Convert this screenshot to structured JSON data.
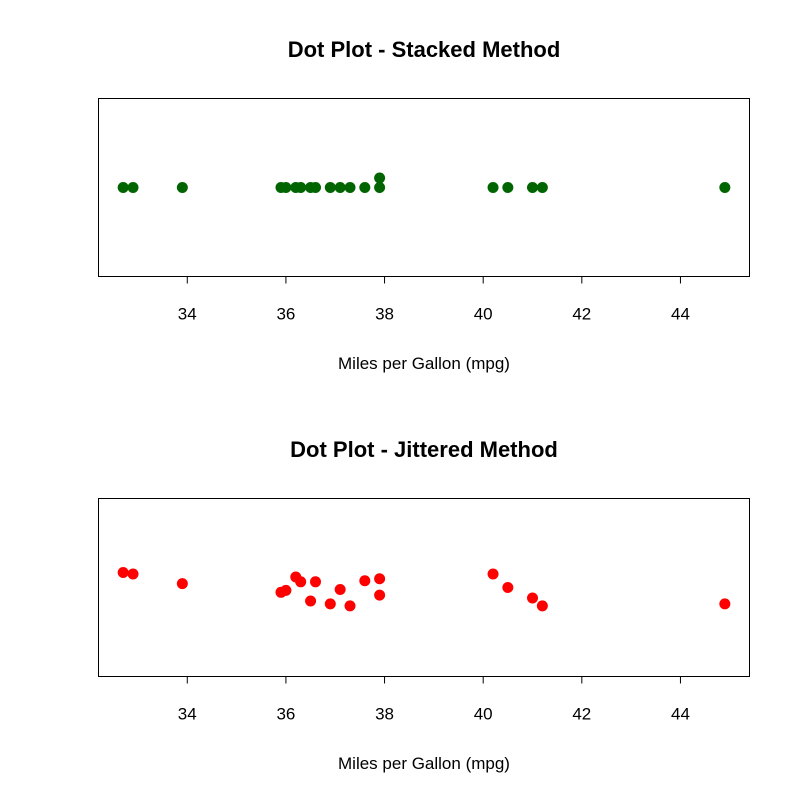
{
  "chart_data": [
    {
      "type": "scatter",
      "method": "stacked",
      "title": "Dot Plot - Stacked Method",
      "xlabel": "Miles per Gallon (mpg)",
      "ylabel": "",
      "xlim": [
        32.2,
        45.4
      ],
      "xticks": [
        34,
        36,
        38,
        40,
        42,
        44
      ],
      "xtick_labels": [
        "34",
        "36",
        "38",
        "40",
        "42",
        "44"
      ],
      "point_color": "#006400",
      "grid": false,
      "legend": "none",
      "points": [
        {
          "x": 32.7,
          "level": 0
        },
        {
          "x": 32.9,
          "level": 0
        },
        {
          "x": 33.9,
          "level": 0
        },
        {
          "x": 35.9,
          "level": 0
        },
        {
          "x": 36.0,
          "level": 0
        },
        {
          "x": 36.2,
          "level": 0
        },
        {
          "x": 36.3,
          "level": 0
        },
        {
          "x": 36.5,
          "level": 0
        },
        {
          "x": 36.6,
          "level": 0
        },
        {
          "x": 36.9,
          "level": 0
        },
        {
          "x": 37.1,
          "level": 0
        },
        {
          "x": 37.3,
          "level": 0
        },
        {
          "x": 37.6,
          "level": 0
        },
        {
          "x": 37.9,
          "level": 0
        },
        {
          "x": 37.9,
          "level": 1
        },
        {
          "x": 40.2,
          "level": 0
        },
        {
          "x": 40.5,
          "level": 0
        },
        {
          "x": 41.0,
          "level": 0
        },
        {
          "x": 41.2,
          "level": 0
        },
        {
          "x": 44.9,
          "level": 0
        }
      ]
    },
    {
      "type": "scatter",
      "method": "jitter",
      "title": "Dot Plot - Jittered Method",
      "xlabel": "Miles per Gallon (mpg)",
      "ylabel": "",
      "xlim": [
        32.2,
        45.4
      ],
      "ylim": [
        0.5,
        1.5
      ],
      "xticks": [
        34,
        36,
        38,
        40,
        42,
        44
      ],
      "xtick_labels": [
        "34",
        "36",
        "38",
        "40",
        "42",
        "44"
      ],
      "point_color": "#ff0000",
      "grid": false,
      "legend": "none",
      "points": [
        {
          "x": 32.7,
          "y": 1.084
        },
        {
          "x": 32.9,
          "y": 1.076
        },
        {
          "x": 33.9,
          "y": 1.022
        },
        {
          "x": 35.9,
          "y": 0.973
        },
        {
          "x": 36.0,
          "y": 0.984
        },
        {
          "x": 36.2,
          "y": 1.059
        },
        {
          "x": 36.3,
          "y": 1.032
        },
        {
          "x": 36.5,
          "y": 0.924
        },
        {
          "x": 36.6,
          "y": 1.032
        },
        {
          "x": 36.9,
          "y": 0.908
        },
        {
          "x": 37.1,
          "y": 0.989
        },
        {
          "x": 37.3,
          "y": 0.897
        },
        {
          "x": 37.6,
          "y": 1.038
        },
        {
          "x": 37.9,
          "y": 1.049
        },
        {
          "x": 37.9,
          "y": 0.957
        },
        {
          "x": 40.2,
          "y": 1.076
        },
        {
          "x": 40.5,
          "y": 1.0
        },
        {
          "x": 41.0,
          "y": 0.941
        },
        {
          "x": 41.2,
          "y": 0.897
        },
        {
          "x": 44.9,
          "y": 0.908
        }
      ]
    }
  ]
}
